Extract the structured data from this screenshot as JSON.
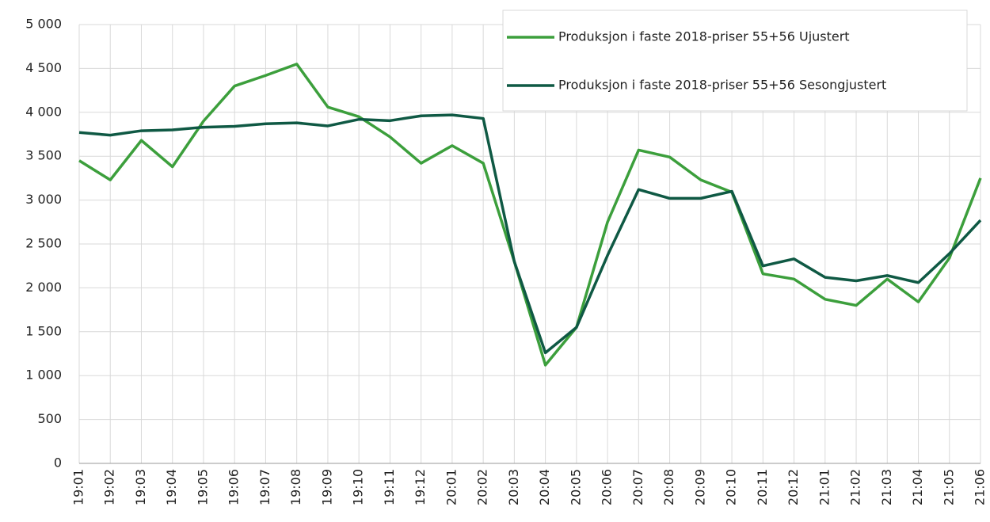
{
  "chart_data": {
    "type": "line",
    "categories": [
      "19:01",
      "19:02",
      "19:03",
      "19:04",
      "19:05",
      "19:06",
      "19:07",
      "19:08",
      "19:09",
      "19:10",
      "19:11",
      "19:12",
      "20:01",
      "20:02",
      "20:03",
      "20:04",
      "20:05",
      "20:06",
      "20:07",
      "20:08",
      "20:09",
      "20:10",
      "20:11",
      "20:12",
      "21:01",
      "21:02",
      "21:03",
      "21:04",
      "21:05",
      "21:06"
    ],
    "series": [
      {
        "name": "Produksjon i faste 2018-priser 55+56 Ujustert",
        "color": "#3c9f3c",
        "values": [
          3450,
          3230,
          3680,
          3380,
          3900,
          4300,
          4420,
          4550,
          4060,
          3950,
          3720,
          3420,
          3620,
          3420,
          2300,
          1120,
          1550,
          2750,
          3570,
          3490,
          3230,
          3090,
          2160,
          2100,
          1870,
          1800,
          2100,
          1840,
          2340,
          3250
        ]
      },
      {
        "name": "Produksjon i faste 2018-priser 55+56 Sesongjustert",
        "color": "#0f5944",
        "values": [
          3770,
          3740,
          3790,
          3800,
          3830,
          3840,
          3870,
          3880,
          3845,
          3920,
          3905,
          3960,
          3970,
          3930,
          2300,
          1260,
          1550,
          2370,
          3120,
          3020,
          3020,
          3100,
          2250,
          2330,
          2120,
          2080,
          2140,
          2060,
          2390,
          2770
        ]
      }
    ],
    "ylim": [
      0,
      5000
    ],
    "yticks": [
      0,
      500,
      {
        "value": 1000,
        "label": "1 000"
      },
      {
        "value": 1500,
        "label": "1 500"
      },
      {
        "value": 2000,
        "label": "2 000"
      },
      {
        "value": 2500,
        "label": "2 500"
      },
      {
        "value": 3000,
        "label": "3 000"
      },
      {
        "value": 3500,
        "label": "3 500"
      },
      {
        "value": 4000,
        "label": "4 000"
      },
      {
        "value": 4500,
        "label": "4 500"
      },
      {
        "value": 5000,
        "label": "5 000"
      }
    ],
    "grid": true,
    "legend": "upper right"
  }
}
